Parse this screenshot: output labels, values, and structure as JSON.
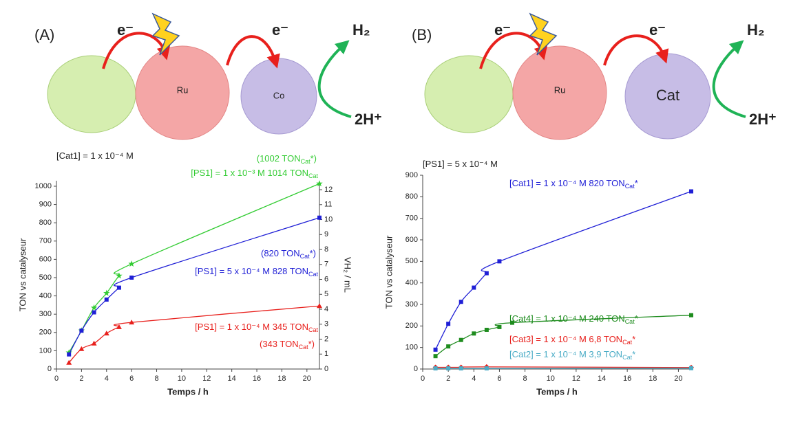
{
  "schemes": [
    {
      "label": "(A)",
      "electron_1": "e⁻",
      "electron_2": "e⁻",
      "photosensitizer": "Ru",
      "catalyst": "Co",
      "product": "H₂",
      "substrate": "2H⁺"
    },
    {
      "label": "(B)",
      "electron_1": "e⁻",
      "electron_2": "e⁻",
      "photosensitizer": "Ru",
      "catalyst": "Cat",
      "product": "H₂",
      "substrate": "2H⁺"
    }
  ],
  "chart_data": [
    {
      "type": "line",
      "x_label": "Temps / h",
      "y_label": "TON vs catalyseur",
      "y2_label": "VH₂ / mL",
      "xlim": [
        0,
        21
      ],
      "xticks": [
        0,
        2,
        4,
        6,
        8,
        10,
        12,
        14,
        16,
        18,
        20
      ],
      "ylim": [
        0,
        1030
      ],
      "yticks": [
        0,
        100,
        200,
        300,
        400,
        500,
        600,
        700,
        800,
        900,
        1000
      ],
      "y2lim": [
        0,
        12.6
      ],
      "y2ticks": [
        0,
        1,
        2,
        3,
        4,
        5,
        6,
        7,
        8,
        9,
        10,
        11,
        12
      ],
      "series": [
        {
          "color": "#33cc33",
          "marker": "star",
          "x": [
            1,
            2,
            3,
            4,
            5,
            6,
            21
          ],
          "values": [
            90,
            210,
            335,
            415,
            510,
            575,
            1014
          ]
        },
        {
          "color": "#1f1fd6",
          "marker": "square",
          "x": [
            1,
            2,
            3,
            4,
            5,
            6,
            21
          ],
          "values": [
            80,
            210,
            310,
            380,
            445,
            500,
            828
          ]
        },
        {
          "color": "#e8201c",
          "marker": "triangle",
          "x": [
            1,
            2,
            3,
            4,
            5,
            6,
            21
          ],
          "values": [
            35,
            110,
            140,
            195,
            230,
            255,
            345
          ]
        }
      ],
      "annotations": [
        {
          "text": "[Cat1] = 1 x 10⁻⁴ M",
          "color": "#222222"
        },
        {
          "text": "(1002 TON",
          "sub": "Cat",
          "suffix": "*)",
          "color": "#33cc33"
        },
        {
          "text": "[PS1] = 1 x 10⁻³ M  1014 TON",
          "sub": "Cat",
          "color": "#33cc33"
        },
        {
          "text": "(820 TON",
          "sub": "Cat",
          "suffix": "*)",
          "color": "#1f1fd6"
        },
        {
          "text": "[PS1] = 5 x 10⁻⁴ M  828 TON",
          "sub": "Cat",
          "color": "#1f1fd6"
        },
        {
          "text": "[PS1] = 1 x 10⁻⁴ M  345 TON",
          "sub": "Cat",
          "color": "#e8201c"
        },
        {
          "text": "(343 TON",
          "sub": "Cat",
          "suffix": "*)",
          "color": "#e8201c"
        }
      ]
    },
    {
      "type": "line",
      "x_label": "Temps / h",
      "y_label": "TON vs catalyseur",
      "xlim": [
        0,
        21
      ],
      "xticks": [
        0,
        2,
        4,
        6,
        8,
        10,
        12,
        14,
        16,
        18,
        20
      ],
      "ylim": [
        0,
        900
      ],
      "yticks": [
        0,
        100,
        200,
        300,
        400,
        500,
        600,
        700,
        800,
        900
      ],
      "series": [
        {
          "color": "#1f1fd6",
          "marker": "square",
          "x": [
            1,
            2,
            3,
            4,
            5,
            6,
            21
          ],
          "values": [
            90,
            210,
            312,
            378,
            445,
            500,
            825
          ]
        },
        {
          "color": "#1e8c1e",
          "marker": "square",
          "x": [
            1,
            2,
            3,
            4,
            5,
            6,
            7,
            21
          ],
          "values": [
            60,
            105,
            135,
            165,
            182,
            195,
            215,
            250
          ]
        },
        {
          "color": "#e8201c",
          "marker": "diamond",
          "x": [
            1,
            2,
            3,
            5,
            21
          ],
          "values": [
            8,
            8,
            8,
            10,
            7
          ]
        },
        {
          "color": "#4bacc6",
          "marker": "square",
          "x": [
            1,
            2,
            3,
            5,
            21
          ],
          "values": [
            3,
            3,
            3,
            3,
            4
          ]
        }
      ],
      "annotations": [
        {
          "text": "[PS1] = 5 x 10⁻⁴ M",
          "color": "#222222"
        },
        {
          "text": "[Cat1] = 1 x 10⁻⁴ M 820 TON",
          "sub": "Cat",
          "suffix": "*",
          "color": "#1f1fd6"
        },
        {
          "text": "[Cat4] = 1 x 10⁻⁴ M 240 TON",
          "sub": "Cat",
          "suffix": "*",
          "color": "#1e8c1e"
        },
        {
          "text": "[Cat3] = 1 x 10⁻⁴ M 6,8 TON",
          "sub": "Cat",
          "suffix": "*",
          "color": "#e8201c"
        },
        {
          "text": "[Cat2] = 1 x 10⁻⁴ M 3,9 TON",
          "sub": "Cat",
          "suffix": "*",
          "color": "#4bacc6"
        }
      ]
    }
  ]
}
